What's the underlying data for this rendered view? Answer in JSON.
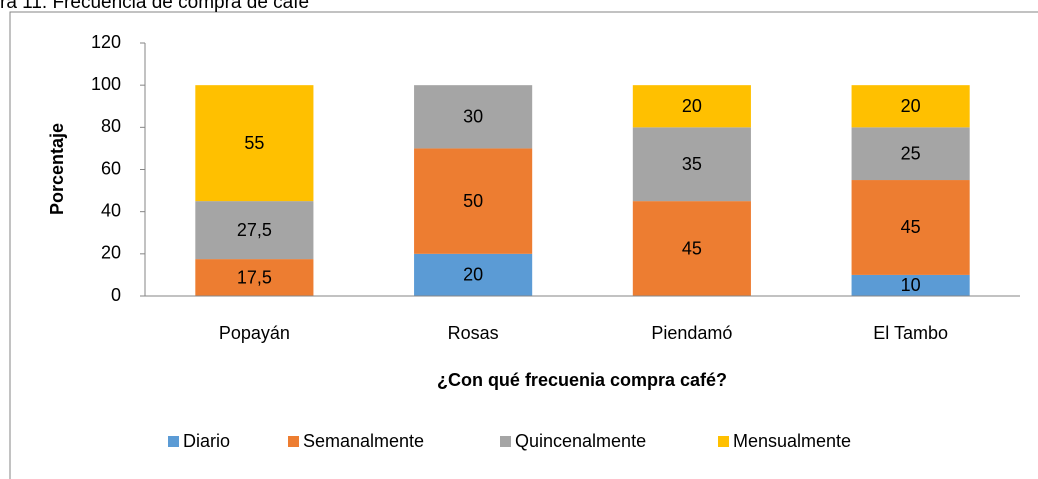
{
  "chart_data": {
    "type": "stacked_bar",
    "title": "ra 11. Frecuencia de compra de café",
    "x_label": "¿Con qué frecuenia compra café?",
    "y_label": "Porcentaje",
    "categories": [
      "Popayán",
      "Rosas",
      "Piendamó",
      "El Tambo"
    ],
    "series": [
      {
        "name": "Diario",
        "color": "#5b9bd5",
        "values": [
          null,
          20,
          null,
          10
        ]
      },
      {
        "name": "Semanalmente",
        "color": "#ed7d31",
        "values": [
          17.5,
          50,
          45,
          45
        ],
        "value_labels": [
          "17,5",
          "50",
          "45",
          "45"
        ]
      },
      {
        "name": "Quincenalmente",
        "color": "#a5a5a5",
        "values": [
          27.5,
          30,
          35,
          25
        ],
        "value_labels": [
          "27,5",
          "30",
          "35",
          "25"
        ]
      },
      {
        "name": "Mensualmente",
        "color": "#ffc000",
        "values": [
          55,
          null,
          20,
          20
        ]
      }
    ],
    "ylim": [
      0,
      120
    ],
    "yticks": [
      0,
      20,
      40,
      60,
      80,
      100,
      120
    ],
    "grid": false,
    "legend": "bottom"
  }
}
